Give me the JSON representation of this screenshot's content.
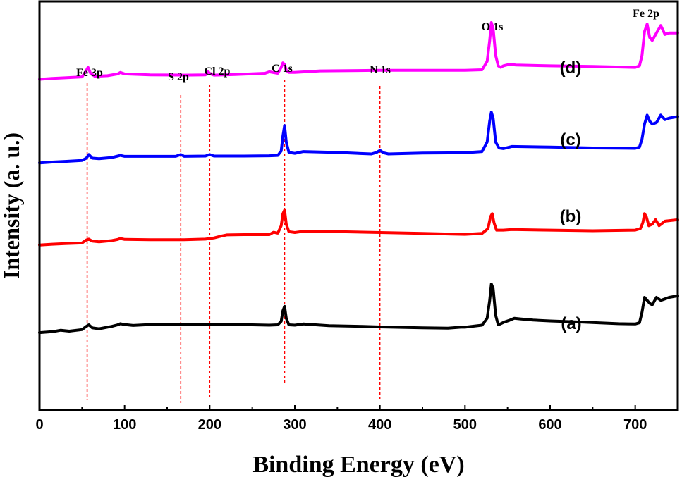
{
  "chart_data": {
    "type": "line",
    "title": "",
    "xlabel": "Binding Energy  (eV)",
    "ylabel": "Intensity (a. u.)",
    "xlim": [
      0,
      750
    ],
    "ylim": [
      0,
      100
    ],
    "xticks": [
      0,
      100,
      200,
      300,
      400,
      500,
      600,
      700
    ],
    "yticks": [],
    "grid": false,
    "legend": "none",
    "peak_markers": [
      {
        "label": "Fe 3p",
        "x": 56,
        "color": "#ff0000"
      },
      {
        "label": "S 2p",
        "x": 166,
        "color": "#ff0000"
      },
      {
        "label": "Cl 2p",
        "x": 200,
        "color": "#ff0000"
      },
      {
        "label": "C 1s",
        "x": 288,
        "color": "#ff0000"
      },
      {
        "label": "N 1s",
        "x": 400,
        "color": "#ff0000"
      },
      {
        "label": "O 1s",
        "x": 532,
        "color": "#000000"
      },
      {
        "label": "Fe 2p",
        "x": 711,
        "color": "#000000"
      }
    ],
    "series": [
      {
        "label": "(a)",
        "color": "#000000",
        "x": [
          0,
          15,
          25,
          35,
          50,
          55,
          58,
          62,
          70,
          85,
          92,
          95,
          100,
          110,
          130,
          150,
          170,
          200,
          220,
          250,
          270,
          280,
          284,
          286,
          288,
          290,
          293,
          300,
          310,
          320,
          340,
          380,
          400,
          450,
          480,
          495,
          500,
          520,
          526,
          529,
          531,
          533,
          536,
          539,
          542,
          546,
          552,
          558,
          565,
          580,
          600,
          640,
          680,
          700,
          705,
          708,
          711,
          714,
          717,
          720,
          725,
          730,
          735,
          740,
          750
        ],
        "y": [
          17.2,
          17.5,
          18.0,
          17.7,
          18.2,
          19.3,
          19.8,
          18.8,
          18.5,
          19.3,
          19.8,
          20.2,
          19.9,
          19.6,
          19.9,
          19.9,
          19.9,
          19.9,
          19.9,
          19.8,
          19.7,
          19.8,
          21.0,
          24.5,
          26.0,
          22.0,
          19.8,
          19.7,
          20.1,
          19.9,
          19.5,
          19.3,
          19.1,
          18.8,
          18.7,
          19.0,
          19.0,
          19.7,
          22.0,
          28.0,
          33.5,
          32.0,
          23.0,
          19.8,
          20.2,
          20.7,
          21.3,
          22.0,
          21.8,
          21.4,
          21.1,
          20.7,
          20.2,
          20.1,
          20.5,
          24.0,
          29.0,
          28.0,
          27.0,
          26.5,
          29.0,
          28.0,
          28.5,
          29.0,
          29.5
        ]
      },
      {
        "label": "(b)",
        "color": "#ff0000",
        "x": [
          0,
          15,
          30,
          50,
          55,
          58,
          62,
          70,
          85,
          92,
          95,
          100,
          130,
          170,
          195,
          205,
          215,
          220,
          240,
          270,
          275,
          280,
          284,
          286,
          288,
          290,
          293,
          300,
          310,
          350,
          400,
          450,
          500,
          520,
          527,
          530,
          532,
          534,
          537,
          545,
          555,
          600,
          650,
          700,
          706,
          709,
          711,
          713,
          716,
          720,
          724,
          728,
          735,
          750
        ],
        "y": [
          46.5,
          46.8,
          47.0,
          47.2,
          48.2,
          48.5,
          47.8,
          47.6,
          48.0,
          48.4,
          48.7,
          48.4,
          48.3,
          48.3,
          48.5,
          48.9,
          49.6,
          49.9,
          50.0,
          50.0,
          50.8,
          50.5,
          53.0,
          57.0,
          58.2,
          53.5,
          51.0,
          50.7,
          51.1,
          51.0,
          50.7,
          50.4,
          50.1,
          50.4,
          52.0,
          56.0,
          57.0,
          54.0,
          51.5,
          51.5,
          51.7,
          51.5,
          51.3,
          51.5,
          52.0,
          54.0,
          57.0,
          56.0,
          53.0,
          53.5,
          55.0,
          53.0,
          54.5,
          55.0
        ]
      },
      {
        "label": "(c)",
        "color": "#0000ff",
        "x": [
          0,
          15,
          30,
          50,
          55,
          58,
          62,
          70,
          85,
          92,
          95,
          100,
          130,
          160,
          166,
          170,
          195,
          200,
          205,
          240,
          270,
          280,
          284,
          286,
          288,
          290,
          293,
          300,
          310,
          350,
          390,
          396,
          400,
          404,
          410,
          450,
          500,
          520,
          526,
          529,
          531,
          533,
          536,
          540,
          545,
          555,
          600,
          650,
          700,
          705,
          708,
          711,
          714,
          717,
          720,
          725,
          730,
          735,
          740,
          750
        ],
        "y": [
          74.0,
          74.3,
          74.5,
          74.8,
          75.6,
          76.8,
          75.6,
          75.4,
          75.8,
          76.3,
          76.5,
          76.2,
          76.2,
          76.2,
          76.8,
          76.2,
          76.3,
          76.8,
          76.3,
          76.3,
          76.4,
          76.5,
          78.0,
          83.0,
          86.5,
          81.0,
          77.5,
          77.2,
          77.8,
          77.5,
          77.0,
          77.5,
          78.2,
          77.4,
          77.0,
          77.3,
          77.4,
          77.8,
          81.0,
          88.0,
          91.0,
          89.0,
          81.0,
          79.0,
          78.8,
          79.5,
          79.3,
          79.0,
          78.9,
          79.3,
          82.0,
          87.0,
          90.0,
          88.0,
          87.0,
          87.5,
          90.0,
          88.5,
          89.0,
          89.5
        ]
      },
      {
        "label": "(d)",
        "color": "#ff00ff",
        "x": [
          0,
          15,
          30,
          50,
          54,
          57,
          60,
          65,
          80,
          92,
          95,
          100,
          130,
          170,
          195,
          198,
          201,
          205,
          230,
          265,
          270,
          280,
          284,
          286,
          288,
          290,
          293,
          300,
          330,
          400,
          450,
          500,
          520,
          526,
          529,
          531,
          533,
          536,
          539,
          542,
          545,
          552,
          560,
          600,
          650,
          700,
          705,
          708,
          711,
          714,
          717,
          720,
          725,
          730,
          735,
          740,
          750
        ],
        "y": [
          102.0,
          102.3,
          102.5,
          102.8,
          104.5,
          106.0,
          104.0,
          103.0,
          103.2,
          103.8,
          104.3,
          103.8,
          103.5,
          103.4,
          103.5,
          104.5,
          103.8,
          103.4,
          103.6,
          104.0,
          104.5,
          104.0,
          106.0,
          107.5,
          107.0,
          105.0,
          104.3,
          104.3,
          104.8,
          105.0,
          105.0,
          105.0,
          105.2,
          108.0,
          115.0,
          121.0,
          119.0,
          110.0,
          106.5,
          106.0,
          106.5,
          107.0,
          106.8,
          106.5,
          106.3,
          106.0,
          106.5,
          110.0,
          118.0,
          120.5,
          116.0,
          115.0,
          117.5,
          120.0,
          117.0,
          117.5,
          117.5
        ]
      }
    ]
  }
}
